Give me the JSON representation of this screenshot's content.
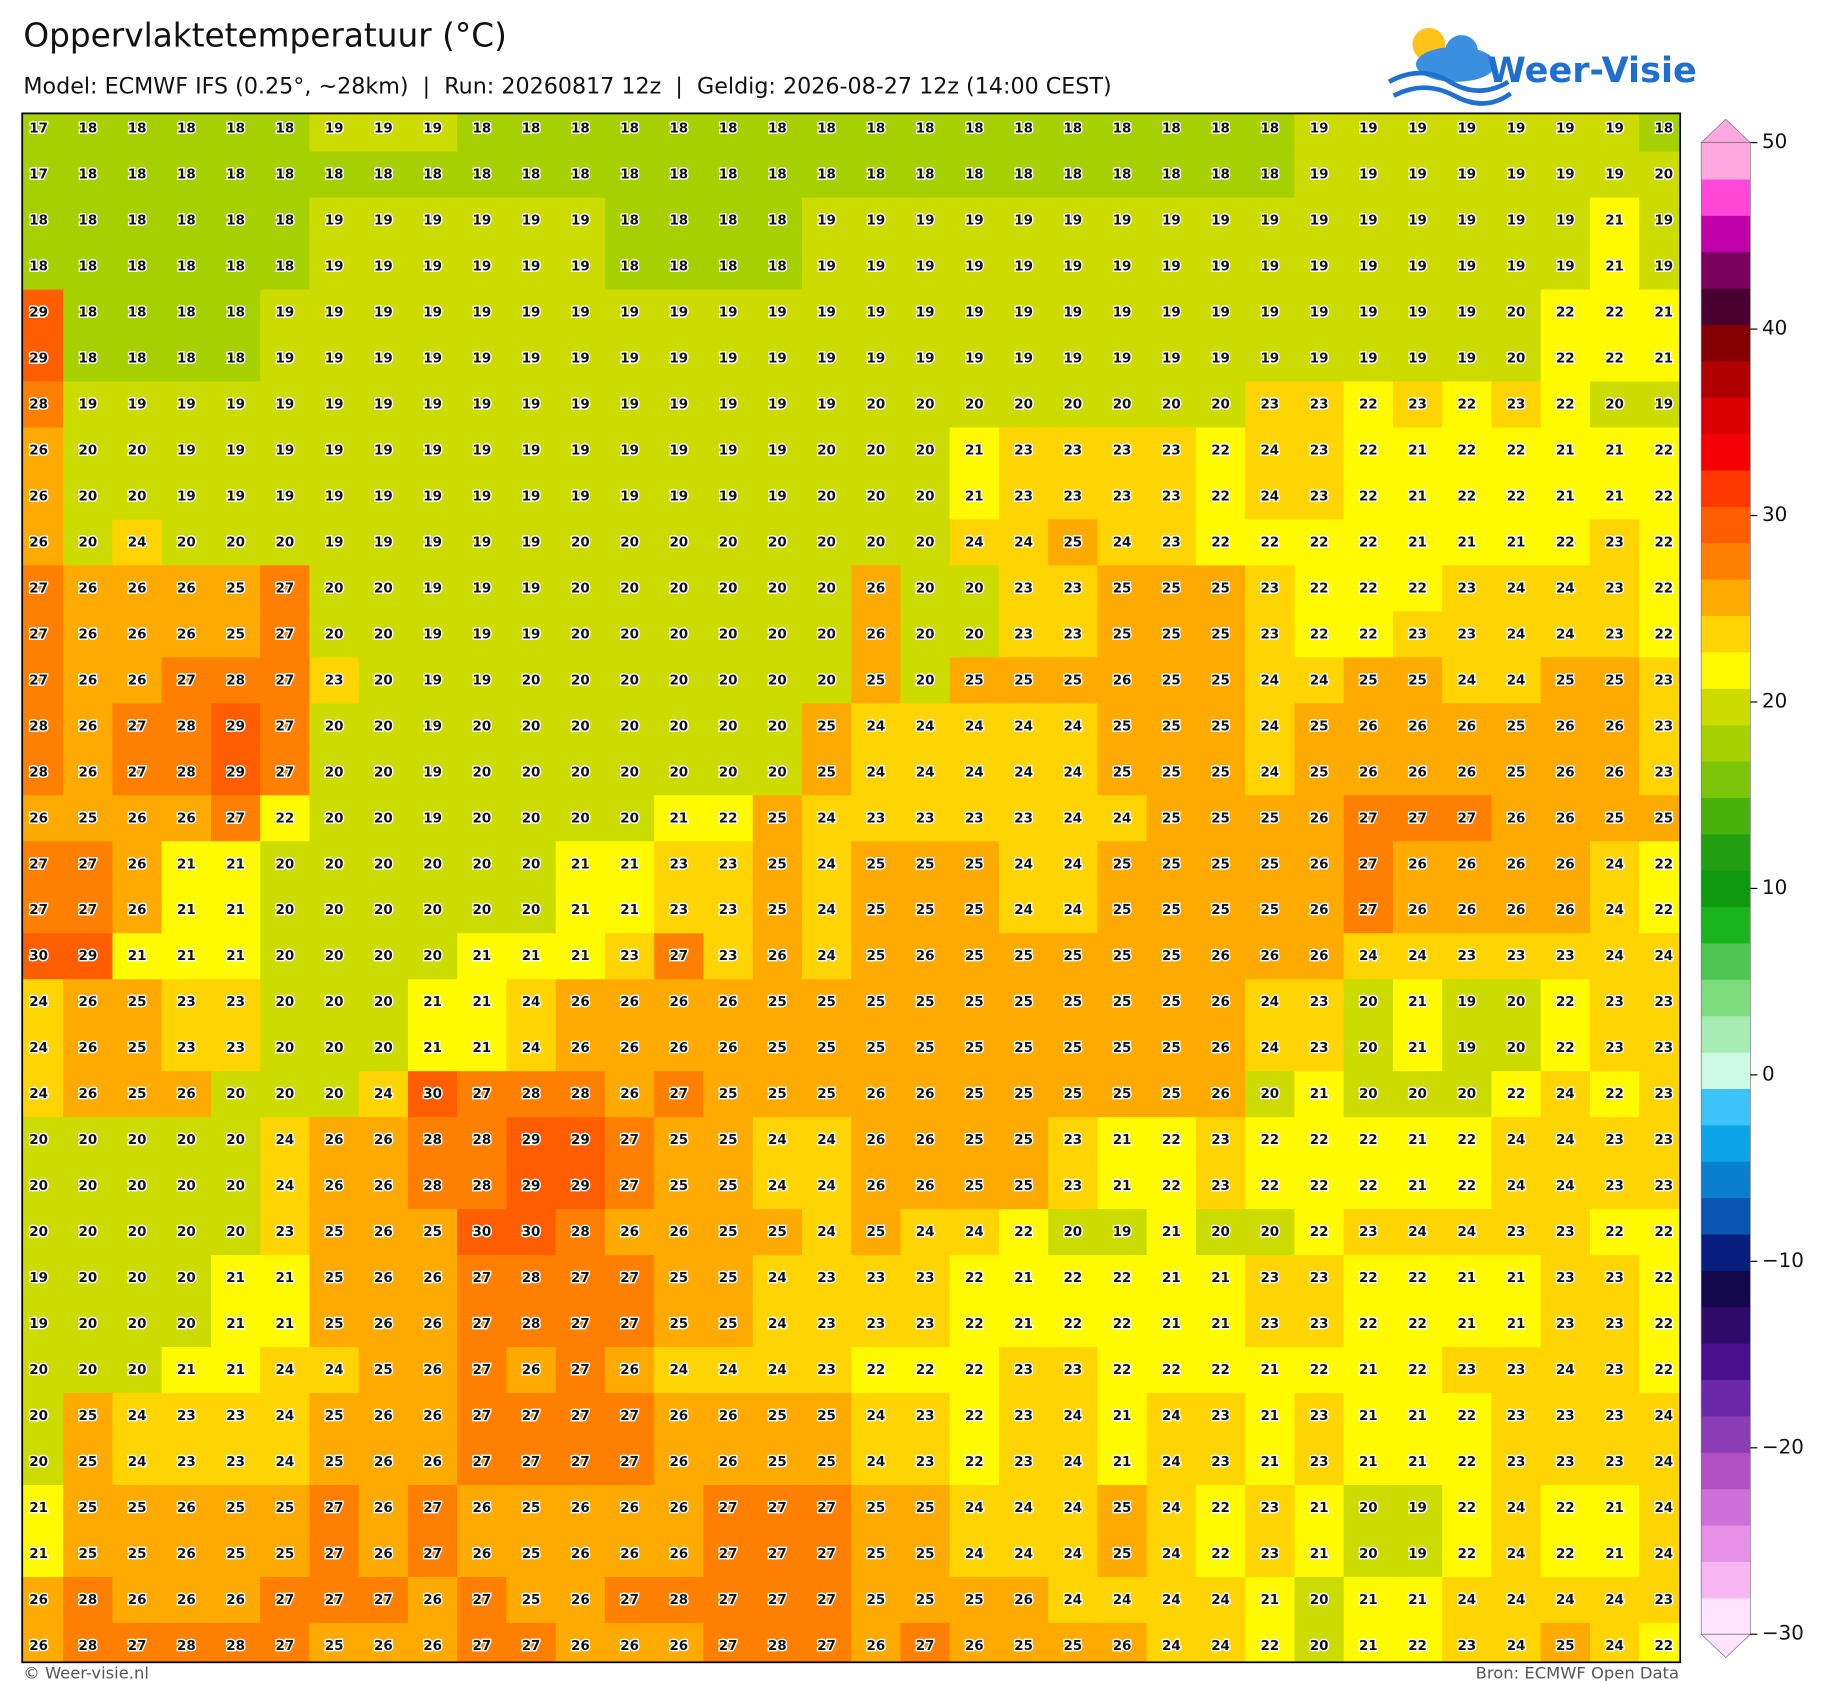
{
  "header": {
    "title": "Oppervlaktetemperatuur (°C)",
    "subtitle": "Model: ECMWF IFS (0.25°, ~28km)  |  Run: 20260817 12z  |  Geldig: 2026-08-27 12z (14:00 CEST)"
  },
  "logo": "Weer-Visie",
  "map": {
    "values": [
      [
        17,
        18,
        18,
        18,
        18,
        18,
        19,
        19,
        19,
        18,
        18,
        18,
        18,
        18,
        18,
        18,
        18,
        18,
        18,
        18,
        18,
        18,
        18,
        18,
        18,
        18,
        19,
        19,
        19,
        19,
        19,
        19,
        19,
        18
      ],
      [
        17,
        18,
        18,
        18,
        18,
        18,
        18,
        18,
        18,
        18,
        18,
        18,
        18,
        18,
        18,
        18,
        18,
        18,
        18,
        18,
        18,
        18,
        18,
        18,
        18,
        18,
        19,
        19,
        19,
        19,
        19,
        19,
        19,
        20
      ],
      [
        18,
        18,
        18,
        18,
        18,
        18,
        19,
        19,
        19,
        19,
        19,
        19,
        18,
        18,
        18,
        18,
        19,
        19,
        19,
        19,
        19,
        19,
        19,
        19,
        19,
        19,
        19,
        19,
        19,
        19,
        19,
        19,
        21,
        19
      ],
      [
        18,
        18,
        18,
        18,
        18,
        18,
        19,
        19,
        19,
        19,
        19,
        19,
        18,
        18,
        18,
        18,
        19,
        19,
        19,
        19,
        19,
        19,
        19,
        19,
        19,
        19,
        19,
        19,
        19,
        19,
        19,
        19,
        21,
        19
      ],
      [
        29,
        18,
        18,
        18,
        18,
        19,
        19,
        19,
        19,
        19,
        19,
        19,
        19,
        19,
        19,
        19,
        19,
        19,
        19,
        19,
        19,
        19,
        19,
        19,
        19,
        19,
        19,
        19,
        19,
        19,
        20,
        22,
        22,
        21
      ],
      [
        29,
        18,
        18,
        18,
        18,
        19,
        19,
        19,
        19,
        19,
        19,
        19,
        19,
        19,
        19,
        19,
        19,
        19,
        19,
        19,
        19,
        19,
        19,
        19,
        19,
        19,
        19,
        19,
        19,
        19,
        20,
        22,
        22,
        21
      ],
      [
        28,
        19,
        19,
        19,
        19,
        19,
        19,
        19,
        19,
        19,
        19,
        19,
        19,
        19,
        19,
        19,
        19,
        20,
        20,
        20,
        20,
        20,
        20,
        20,
        20,
        23,
        23,
        22,
        23,
        22,
        23,
        22,
        20,
        19
      ],
      [
        26,
        20,
        20,
        19,
        19,
        19,
        19,
        19,
        19,
        19,
        19,
        19,
        19,
        19,
        19,
        19,
        20,
        20,
        20,
        21,
        23,
        23,
        23,
        23,
        22,
        24,
        23,
        22,
        21,
        22,
        22,
        21,
        21,
        22
      ],
      [
        26,
        20,
        20,
        19,
        19,
        19,
        19,
        19,
        19,
        19,
        19,
        19,
        19,
        19,
        19,
        19,
        20,
        20,
        20,
        21,
        23,
        23,
        23,
        23,
        22,
        24,
        23,
        22,
        21,
        22,
        22,
        21,
        21,
        22
      ],
      [
        26,
        20,
        24,
        20,
        20,
        20,
        19,
        19,
        19,
        19,
        19,
        20,
        20,
        20,
        20,
        20,
        20,
        20,
        20,
        24,
        24,
        25,
        24,
        23,
        22,
        22,
        22,
        22,
        21,
        21,
        21,
        22,
        23,
        22
      ],
      [
        27,
        26,
        26,
        26,
        25,
        27,
        20,
        20,
        19,
        19,
        19,
        20,
        20,
        20,
        20,
        20,
        20,
        26,
        20,
        20,
        23,
        23,
        25,
        25,
        25,
        23,
        22,
        22,
        22,
        23,
        24,
        24,
        23,
        22
      ],
      [
        27,
        26,
        26,
        26,
        25,
        27,
        20,
        20,
        19,
        19,
        19,
        20,
        20,
        20,
        20,
        20,
        20,
        26,
        20,
        20,
        23,
        23,
        25,
        25,
        25,
        23,
        22,
        22,
        23,
        23,
        24,
        24,
        23,
        22
      ],
      [
        27,
        26,
        26,
        27,
        28,
        27,
        23,
        20,
        19,
        19,
        20,
        20,
        20,
        20,
        20,
        20,
        20,
        25,
        20,
        25,
        25,
        25,
        26,
        25,
        25,
        24,
        24,
        25,
        25,
        24,
        24,
        25,
        25,
        23
      ],
      [
        28,
        26,
        27,
        28,
        29,
        27,
        20,
        20,
        19,
        20,
        20,
        20,
        20,
        20,
        20,
        20,
        25,
        24,
        24,
        24,
        24,
        24,
        25,
        25,
        25,
        24,
        25,
        26,
        26,
        26,
        25,
        26,
        26,
        23
      ],
      [
        28,
        26,
        27,
        28,
        29,
        27,
        20,
        20,
        19,
        20,
        20,
        20,
        20,
        20,
        20,
        20,
        25,
        24,
        24,
        24,
        24,
        24,
        25,
        25,
        25,
        24,
        25,
        26,
        26,
        26,
        25,
        26,
        26,
        23
      ],
      [
        26,
        25,
        26,
        26,
        27,
        22,
        20,
        20,
        19,
        20,
        20,
        20,
        20,
        21,
        22,
        25,
        24,
        23,
        23,
        23,
        23,
        24,
        24,
        25,
        25,
        25,
        26,
        27,
        27,
        27,
        26,
        26,
        25,
        25
      ],
      [
        27,
        27,
        26,
        21,
        21,
        20,
        20,
        20,
        20,
        20,
        20,
        21,
        21,
        23,
        23,
        25,
        24,
        25,
        25,
        25,
        24,
        24,
        25,
        25,
        25,
        25,
        26,
        27,
        26,
        26,
        26,
        26,
        24,
        22
      ],
      [
        27,
        27,
        26,
        21,
        21,
        20,
        20,
        20,
        20,
        20,
        20,
        21,
        21,
        23,
        23,
        25,
        24,
        25,
        25,
        25,
        24,
        24,
        25,
        25,
        25,
        25,
        26,
        27,
        26,
        26,
        26,
        26,
        24,
        22
      ],
      [
        30,
        29,
        21,
        21,
        21,
        20,
        20,
        20,
        20,
        21,
        21,
        21,
        23,
        27,
        23,
        26,
        24,
        25,
        26,
        25,
        25,
        25,
        25,
        25,
        26,
        26,
        26,
        24,
        24,
        23,
        23,
        23,
        24,
        24
      ],
      [
        24,
        26,
        25,
        23,
        23,
        20,
        20,
        20,
        21,
        21,
        24,
        26,
        26,
        26,
        26,
        25,
        25,
        25,
        25,
        25,
        25,
        25,
        25,
        25,
        26,
        24,
        23,
        20,
        21,
        19,
        20,
        22,
        23,
        23
      ],
      [
        24,
        26,
        25,
        23,
        23,
        20,
        20,
        20,
        21,
        21,
        24,
        26,
        26,
        26,
        26,
        25,
        25,
        25,
        25,
        25,
        25,
        25,
        25,
        25,
        26,
        24,
        23,
        20,
        21,
        19,
        20,
        22,
        23,
        23
      ],
      [
        24,
        26,
        25,
        26,
        20,
        20,
        20,
        24,
        30,
        27,
        28,
        28,
        26,
        27,
        25,
        25,
        25,
        26,
        26,
        25,
        25,
        25,
        25,
        25,
        26,
        20,
        21,
        20,
        20,
        20,
        22,
        24,
        22,
        23
      ],
      [
        20,
        20,
        20,
        20,
        20,
        24,
        26,
        26,
        28,
        28,
        29,
        29,
        27,
        25,
        25,
        24,
        24,
        26,
        26,
        25,
        25,
        23,
        21,
        22,
        23,
        22,
        22,
        22,
        21,
        22,
        24,
        24,
        23,
        23
      ],
      [
        20,
        20,
        20,
        20,
        20,
        24,
        26,
        26,
        28,
        28,
        29,
        29,
        27,
        25,
        25,
        24,
        24,
        26,
        26,
        25,
        25,
        23,
        21,
        22,
        23,
        22,
        22,
        22,
        21,
        22,
        24,
        24,
        23,
        23
      ],
      [
        20,
        20,
        20,
        20,
        20,
        23,
        25,
        26,
        25,
        30,
        30,
        28,
        26,
        26,
        25,
        25,
        24,
        25,
        24,
        24,
        22,
        20,
        19,
        21,
        20,
        20,
        22,
        23,
        24,
        24,
        23,
        23,
        22,
        22
      ],
      [
        19,
        20,
        20,
        20,
        21,
        21,
        25,
        26,
        26,
        27,
        28,
        27,
        27,
        25,
        25,
        24,
        23,
        23,
        23,
        22,
        21,
        22,
        22,
        21,
        21,
        23,
        23,
        22,
        22,
        21,
        21,
        23,
        23,
        22
      ],
      [
        19,
        20,
        20,
        20,
        21,
        21,
        25,
        26,
        26,
        27,
        28,
        27,
        27,
        25,
        25,
        24,
        23,
        23,
        23,
        22,
        21,
        22,
        22,
        21,
        21,
        23,
        23,
        22,
        22,
        21,
        21,
        23,
        23,
        22
      ],
      [
        20,
        20,
        20,
        21,
        21,
        24,
        24,
        25,
        26,
        27,
        26,
        27,
        26,
        24,
        24,
        24,
        23,
        22,
        22,
        22,
        23,
        23,
        22,
        22,
        22,
        21,
        22,
        21,
        22,
        23,
        23,
        24,
        23,
        22
      ],
      [
        20,
        25,
        24,
        23,
        23,
        24,
        25,
        26,
        26,
        27,
        27,
        27,
        27,
        26,
        26,
        25,
        25,
        24,
        23,
        22,
        23,
        24,
        21,
        24,
        23,
        21,
        23,
        21,
        21,
        22,
        23,
        23,
        23,
        24
      ],
      [
        20,
        25,
        24,
        23,
        23,
        24,
        25,
        26,
        26,
        27,
        27,
        27,
        27,
        26,
        26,
        25,
        25,
        24,
        23,
        22,
        23,
        24,
        21,
        24,
        23,
        21,
        23,
        21,
        21,
        22,
        23,
        23,
        23,
        24
      ],
      [
        21,
        25,
        25,
        26,
        25,
        25,
        27,
        26,
        27,
        26,
        25,
        26,
        26,
        26,
        27,
        27,
        27,
        25,
        25,
        24,
        24,
        24,
        25,
        24,
        22,
        23,
        21,
        20,
        19,
        22,
        24,
        22,
        21,
        24
      ],
      [
        21,
        25,
        25,
        26,
        25,
        25,
        27,
        26,
        27,
        26,
        25,
        26,
        26,
        26,
        27,
        27,
        27,
        25,
        25,
        24,
        24,
        24,
        25,
        24,
        22,
        23,
        21,
        20,
        19,
        22,
        24,
        22,
        21,
        24
      ],
      [
        26,
        28,
        26,
        26,
        26,
        27,
        27,
        27,
        26,
        27,
        25,
        26,
        27,
        28,
        27,
        27,
        27,
        25,
        25,
        25,
        26,
        24,
        24,
        24,
        24,
        21,
        20,
        21,
        21,
        24,
        24,
        24,
        24,
        23
      ],
      [
        26,
        28,
        27,
        28,
        28,
        27,
        25,
        26,
        26,
        27,
        27,
        26,
        26,
        26,
        27,
        28,
        27,
        26,
        27,
        26,
        25,
        25,
        26,
        24,
        24,
        22,
        20,
        21,
        22,
        23,
        24,
        25,
        24,
        22
      ]
    ]
  },
  "colorbar": {
    "lim": [
      -30,
      50
    ],
    "ticks": [
      50,
      40,
      30,
      20,
      10,
      0,
      {
        "value": -10,
        "label": "−10"
      },
      {
        "value": -20,
        "label": "−20"
      },
      {
        "value": -30,
        "label": "−30"
      }
    ],
    "colors": [
      "#fde4fb",
      "#f7b6f2",
      "#e690e8",
      "#cc6fd6",
      "#b050c4",
      "#8c3cb4",
      "#6c28a8",
      "#4a0f8c",
      "#2e0a6a",
      "#14084c",
      "#061e7e",
      "#0a55b0",
      "#0a7fd0",
      "#0ea5e6",
      "#3cc3f7",
      "#ccf8e6",
      "#a6ecb3",
      "#7ddc7e",
      "#4ec651",
      "#19b31c",
      "#0d9a0f",
      "#239f12",
      "#47b20c",
      "#7cc50a",
      "#a6d000",
      "#ccdb00",
      "#fffa00",
      "#ffd400",
      "#ffaa00",
      "#ff8000",
      "#ff5e00",
      "#ff3700",
      "#f50000",
      "#d80000",
      "#b00000",
      "#840000",
      "#4a0030",
      "#7a0060",
      "#c000a8",
      "#ff48d8",
      "#ffa8e0"
    ]
  },
  "footer": {
    "left": "© Weer-visie.nl",
    "right": "Bron: ECMWF Open Data"
  }
}
